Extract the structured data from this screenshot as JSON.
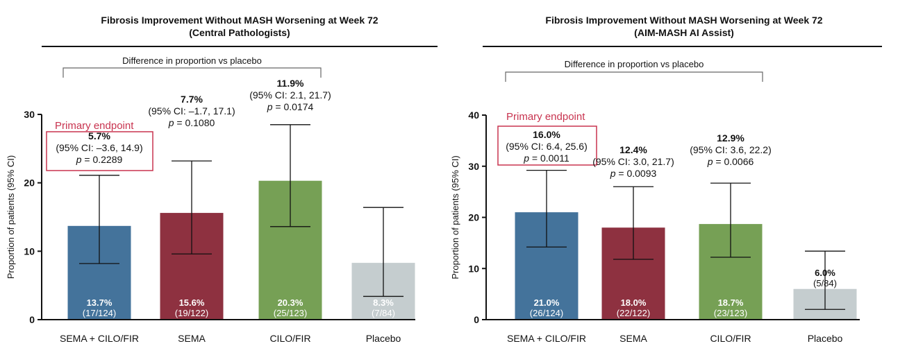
{
  "chart_data": [
    {
      "type": "bar",
      "title_line1": "Fibrosis Improvement Without MASH Worsening at Week 72",
      "title_line2": "(Central Pathologists)",
      "ylabel": "Proportion of patients (95% CI)",
      "ylim": [
        0,
        30
      ],
      "yticks": [
        0,
        10,
        20,
        30
      ],
      "bracket_label": "Difference in proportion vs placebo",
      "primary_label": "Primary endpoint",
      "categories": [
        "SEMA + CILO/FIR",
        "SEMA",
        "CILO/FIR",
        "Placebo"
      ],
      "values": [
        13.7,
        15.6,
        20.3,
        8.3
      ],
      "ci_low": [
        8.2,
        9.6,
        13.6,
        3.4
      ],
      "ci_high": [
        21.1,
        23.2,
        28.5,
        16.4
      ],
      "bar_labels": [
        "13.7%",
        "15.6%",
        "20.3%",
        "8.3%"
      ],
      "bar_counts": [
        "(17/124)",
        "(19/122)",
        "(25/123)",
        "(7/84)"
      ],
      "colors": [
        "#44739b",
        "#8e3140",
        "#76a055",
        "#c5cdcf"
      ],
      "diffs": [
        {
          "pct": "5.7%",
          "ci": "(95% CI: –3.6, 14.9)",
          "p": "= 0.2289"
        },
        {
          "pct": "7.7%",
          "ci": "(95% CI: –1.7, 17.1)",
          "p": "= 0.1080"
        },
        {
          "pct": "11.9%",
          "ci": "(95% CI: 2.1, 21.7)",
          "p": "= 0.0174"
        }
      ],
      "p_symbol": "p"
    },
    {
      "type": "bar",
      "title_line1": "Fibrosis Improvement Without MASH Worsening at Week 72",
      "title_line2": "(AIM-MASH AI Assist)",
      "ylabel": "Proportion of patients (95% CI)",
      "ylim": [
        0,
        40
      ],
      "yticks": [
        0,
        10,
        20,
        30,
        40
      ],
      "bracket_label": "Difference in proportion vs placebo",
      "primary_label": "Primary endpoint",
      "categories": [
        "SEMA + CILO/FIR",
        "SEMA",
        "CILO/FIR",
        "Placebo"
      ],
      "values": [
        21.0,
        18.0,
        18.7,
        6.0
      ],
      "ci_low": [
        14.2,
        11.8,
        12.2,
        2.0
      ],
      "ci_high": [
        29.2,
        26.0,
        26.7,
        13.4
      ],
      "bar_labels": [
        "21.0%",
        "18.0%",
        "18.7%",
        "6.0%"
      ],
      "bar_counts": [
        "(26/124)",
        "(22/122)",
        "(23/123)",
        "(5/84)"
      ],
      "colors": [
        "#44739b",
        "#8e3140",
        "#76a055",
        "#c5cdcf"
      ],
      "diffs": [
        {
          "pct": "16.0%",
          "ci": "(95% CI: 6.4, 25.6)",
          "p": "= 0.0011"
        },
        {
          "pct": "12.4%",
          "ci": "(95% CI: 3.0, 21.7)",
          "p": "= 0.0093"
        },
        {
          "pct": "12.9%",
          "ci": "(95% CI: 3.6, 22.2)",
          "p": "= 0.0066"
        }
      ],
      "p_symbol": "p"
    }
  ]
}
